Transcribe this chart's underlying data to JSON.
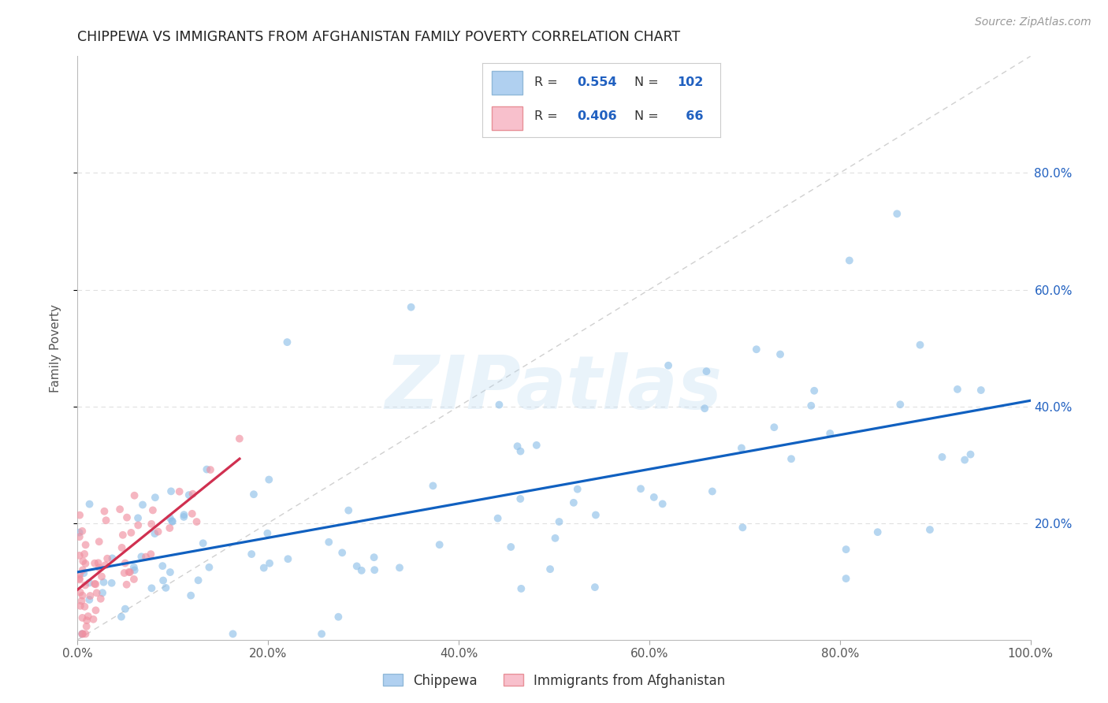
{
  "title": "CHIPPEWA VS IMMIGRANTS FROM AFGHANISTAN FAMILY POVERTY CORRELATION CHART",
  "source": "Source: ZipAtlas.com",
  "ylabel": "Family Poverty",
  "xlim": [
    0,
    1.0
  ],
  "ylim": [
    0,
    1.0
  ],
  "xtick_vals": [
    0.0,
    0.2,
    0.4,
    0.6,
    0.8,
    1.0
  ],
  "xtick_labels": [
    "0.0%",
    "20.0%",
    "40.0%",
    "60.0%",
    "80.0%",
    "100.0%"
  ],
  "ytick_vals": [
    0.2,
    0.4,
    0.6,
    0.8
  ],
  "ytick_labels": [
    "20.0%",
    "40.0%",
    "60.0%",
    "80.0%"
  ],
  "chip_R": "0.554",
  "chip_N": "102",
  "afg_R": "0.406",
  "afg_N": "66",
  "chippewa_label": "Chippewa",
  "afghanistan_label": "Immigrants from Afghanistan",
  "chippewa_dot_color": "#90c0e8",
  "afghanistan_dot_color": "#f090a0",
  "chippewa_legend_color": "#b0d0f0",
  "afghanistan_legend_color": "#f8c0cc",
  "chippewa_line_color": "#1060c0",
  "afghanistan_line_color": "#d03050",
  "diag_color": "#d0d0d0",
  "grid_color": "#e0e0e0",
  "right_tick_color": "#2060c0",
  "background": "#ffffff",
  "dot_size": 50,
  "dot_alpha": 0.65,
  "line_width": 2.3,
  "title_fontsize": 12.5,
  "ylabel_fontsize": 11,
  "tick_fontsize": 11,
  "source_fontsize": 10,
  "legend_fontsize": 11.5,
  "watermark_text": "ZIPatlas",
  "watermark_color": "#b8d8f0",
  "watermark_alpha": 0.3,
  "watermark_fontsize": 68
}
